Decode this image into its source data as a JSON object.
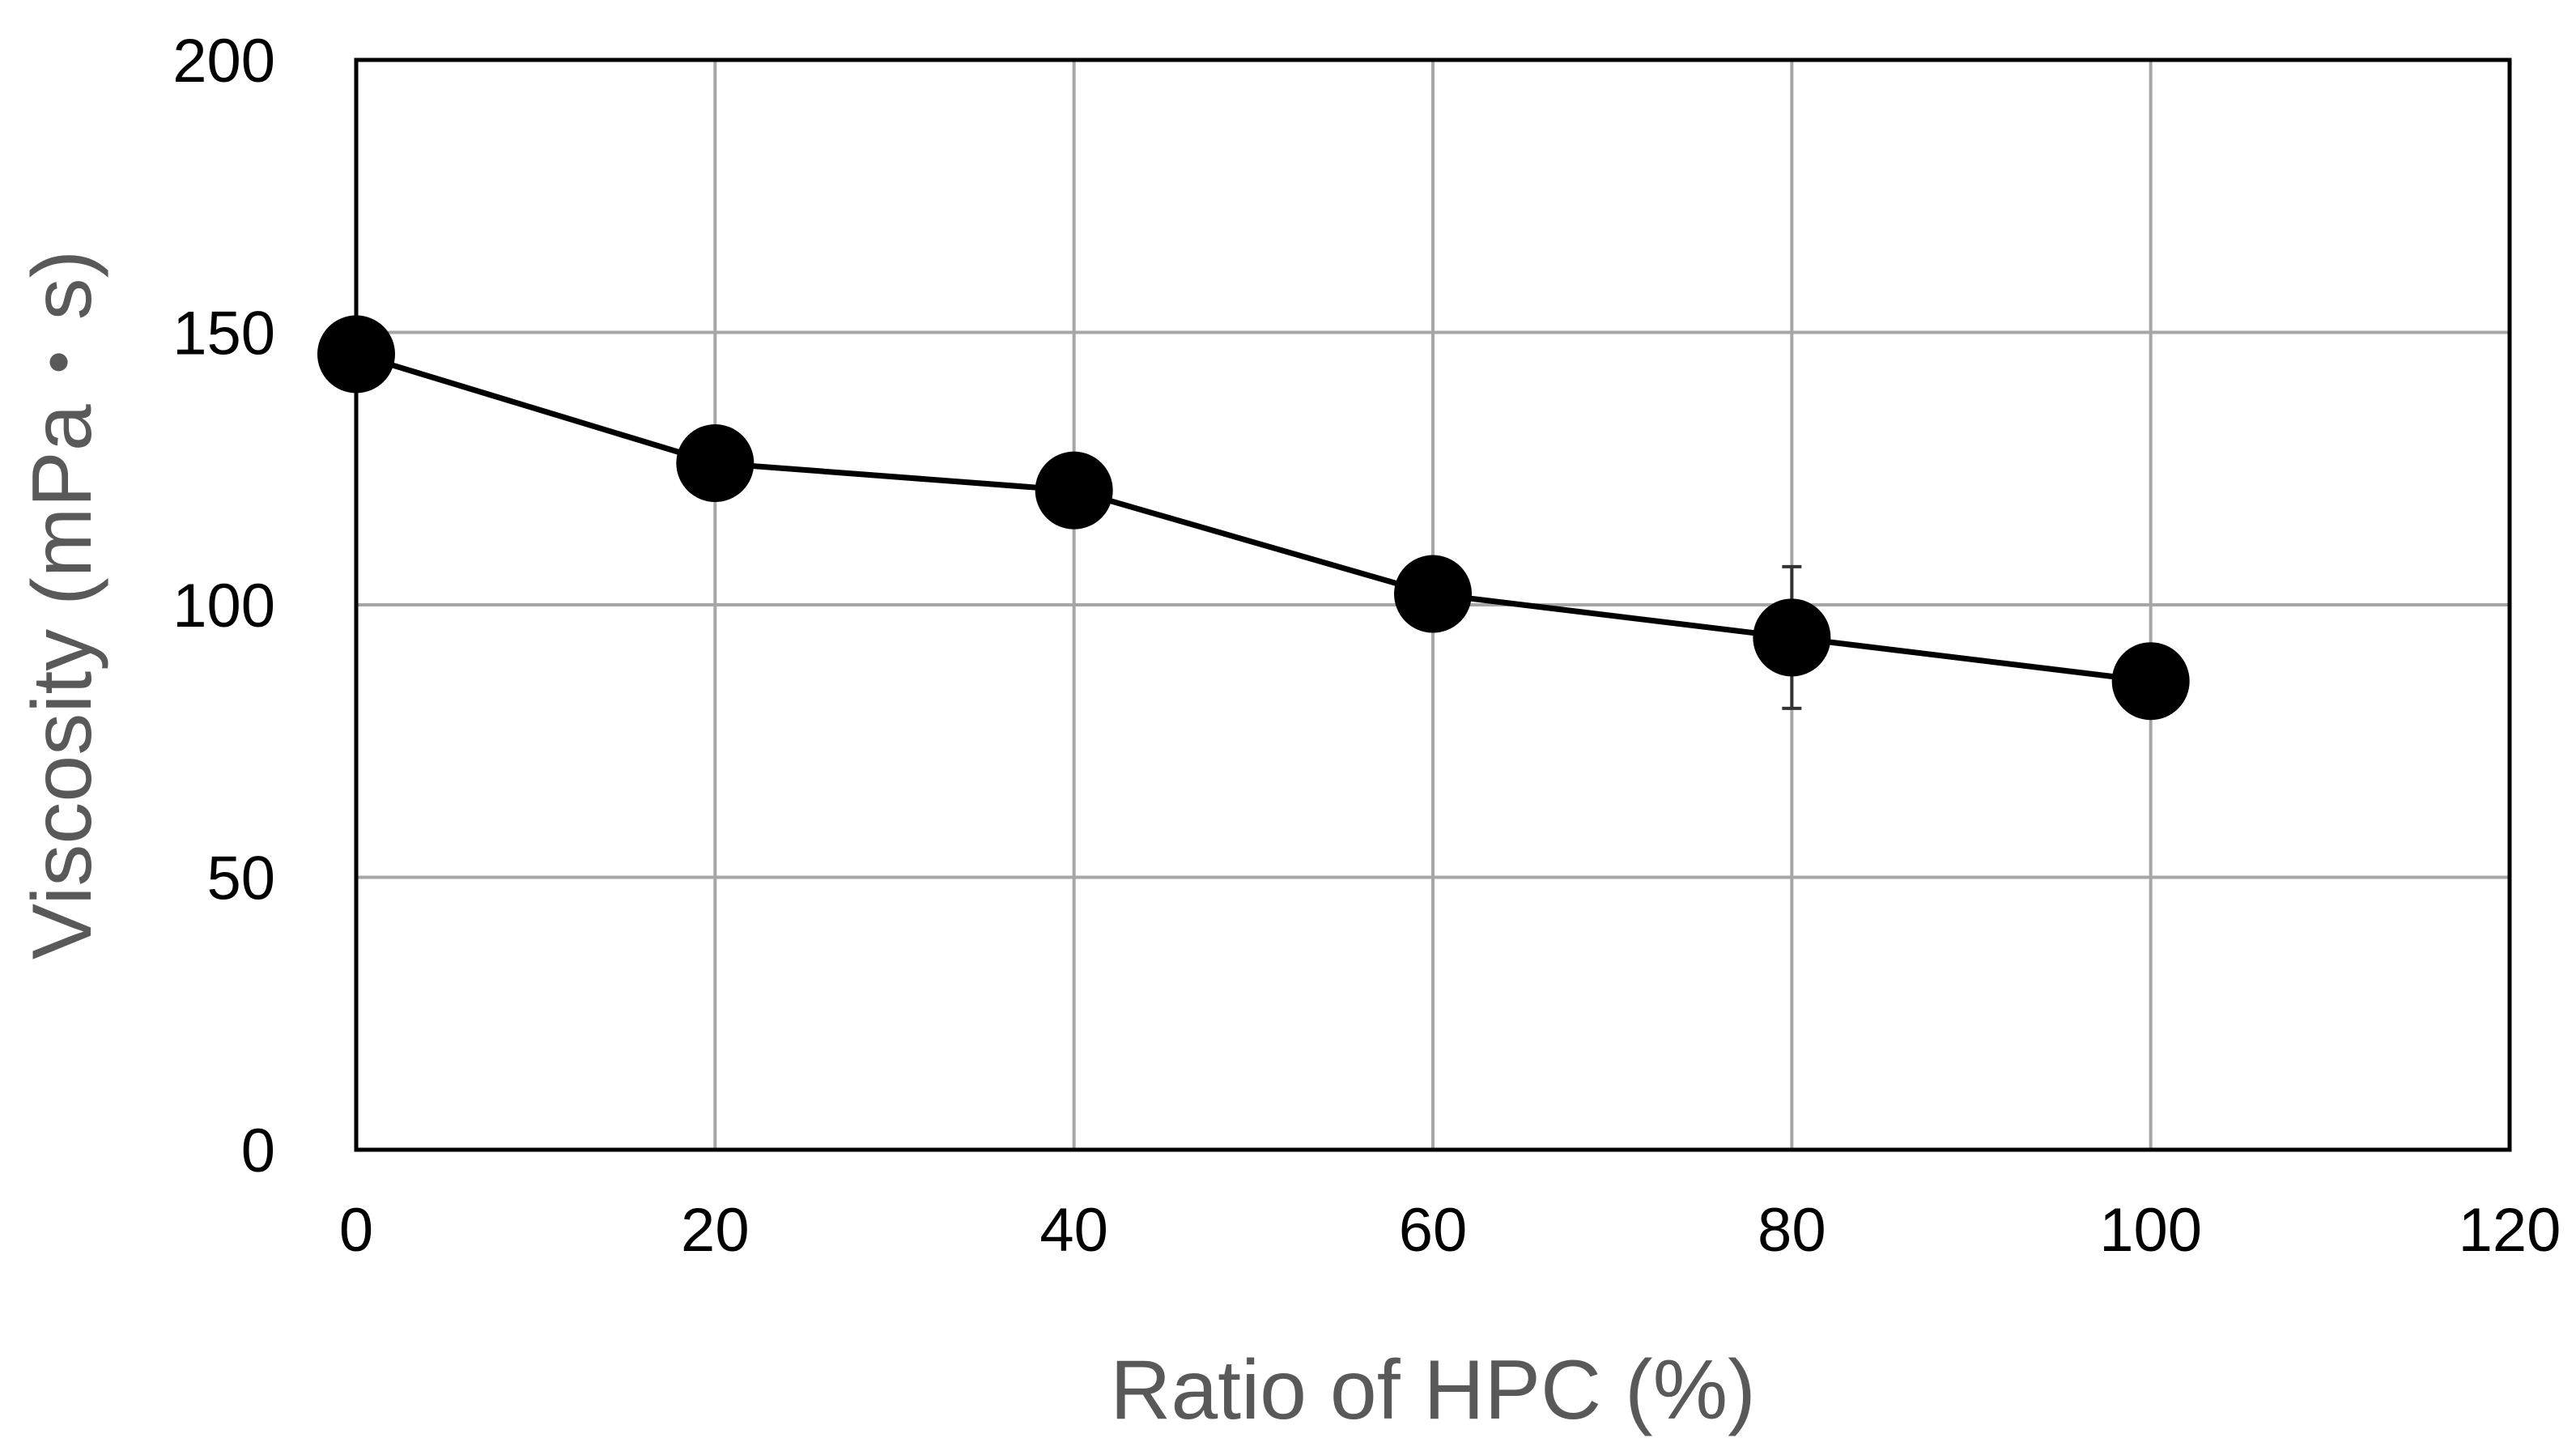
{
  "chart_data": {
    "type": "line",
    "title": "",
    "xlabel": "Ratio of HPC (%)",
    "ylabel": "Viscosity (mPa・s)",
    "xlim": [
      0,
      120
    ],
    "ylim": [
      0,
      200
    ],
    "xticks": [
      0,
      20,
      40,
      60,
      80,
      100,
      120
    ],
    "yticks": [
      0,
      50,
      100,
      150,
      200
    ],
    "grid": true,
    "legend": "none",
    "series": [
      {
        "x": [
          0,
          20,
          40,
          60,
          80,
          100
        ],
        "y": [
          146,
          126,
          121,
          102,
          94,
          86
        ],
        "error": [
          null,
          null,
          null,
          null,
          13,
          null
        ],
        "color": "#000000",
        "marker": "filled-circle"
      }
    ]
  },
  "colors": {
    "grid": "#a6a6a6",
    "frame": "#000000",
    "axis_title": "#595959",
    "series": "#000000"
  }
}
